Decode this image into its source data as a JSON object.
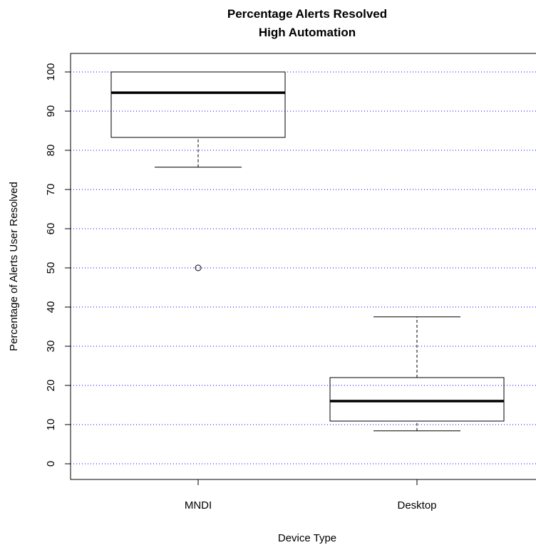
{
  "chart_data": {
    "type": "boxplot",
    "title": "Percentage Alerts Resolved",
    "subtitle": "High Automation",
    "xlabel": "Device Type",
    "ylabel": "Percentage of Alerts User Resolved",
    "ylim": [
      0,
      100
    ],
    "yticks": [
      "0",
      "10",
      "20",
      "30",
      "40",
      "50",
      "60",
      "70",
      "80",
      "90",
      "100"
    ],
    "grid": "horizontal dotted",
    "colors": {
      "grid": "#0000ff",
      "box": "#000000"
    },
    "categories": [
      "MNDI",
      "Desktop"
    ],
    "boxes": [
      {
        "category": "MNDI",
        "whisker_low": 75.7,
        "q1": 83.3,
        "median": 94.7,
        "q3": 100,
        "whisker_high": 100,
        "outliers": [
          50
        ]
      },
      {
        "category": "Desktop",
        "whisker_low": 8.4,
        "q1": 10.9,
        "median": 16.0,
        "q3": 22.0,
        "whisker_high": 37.5,
        "outliers": []
      }
    ]
  }
}
